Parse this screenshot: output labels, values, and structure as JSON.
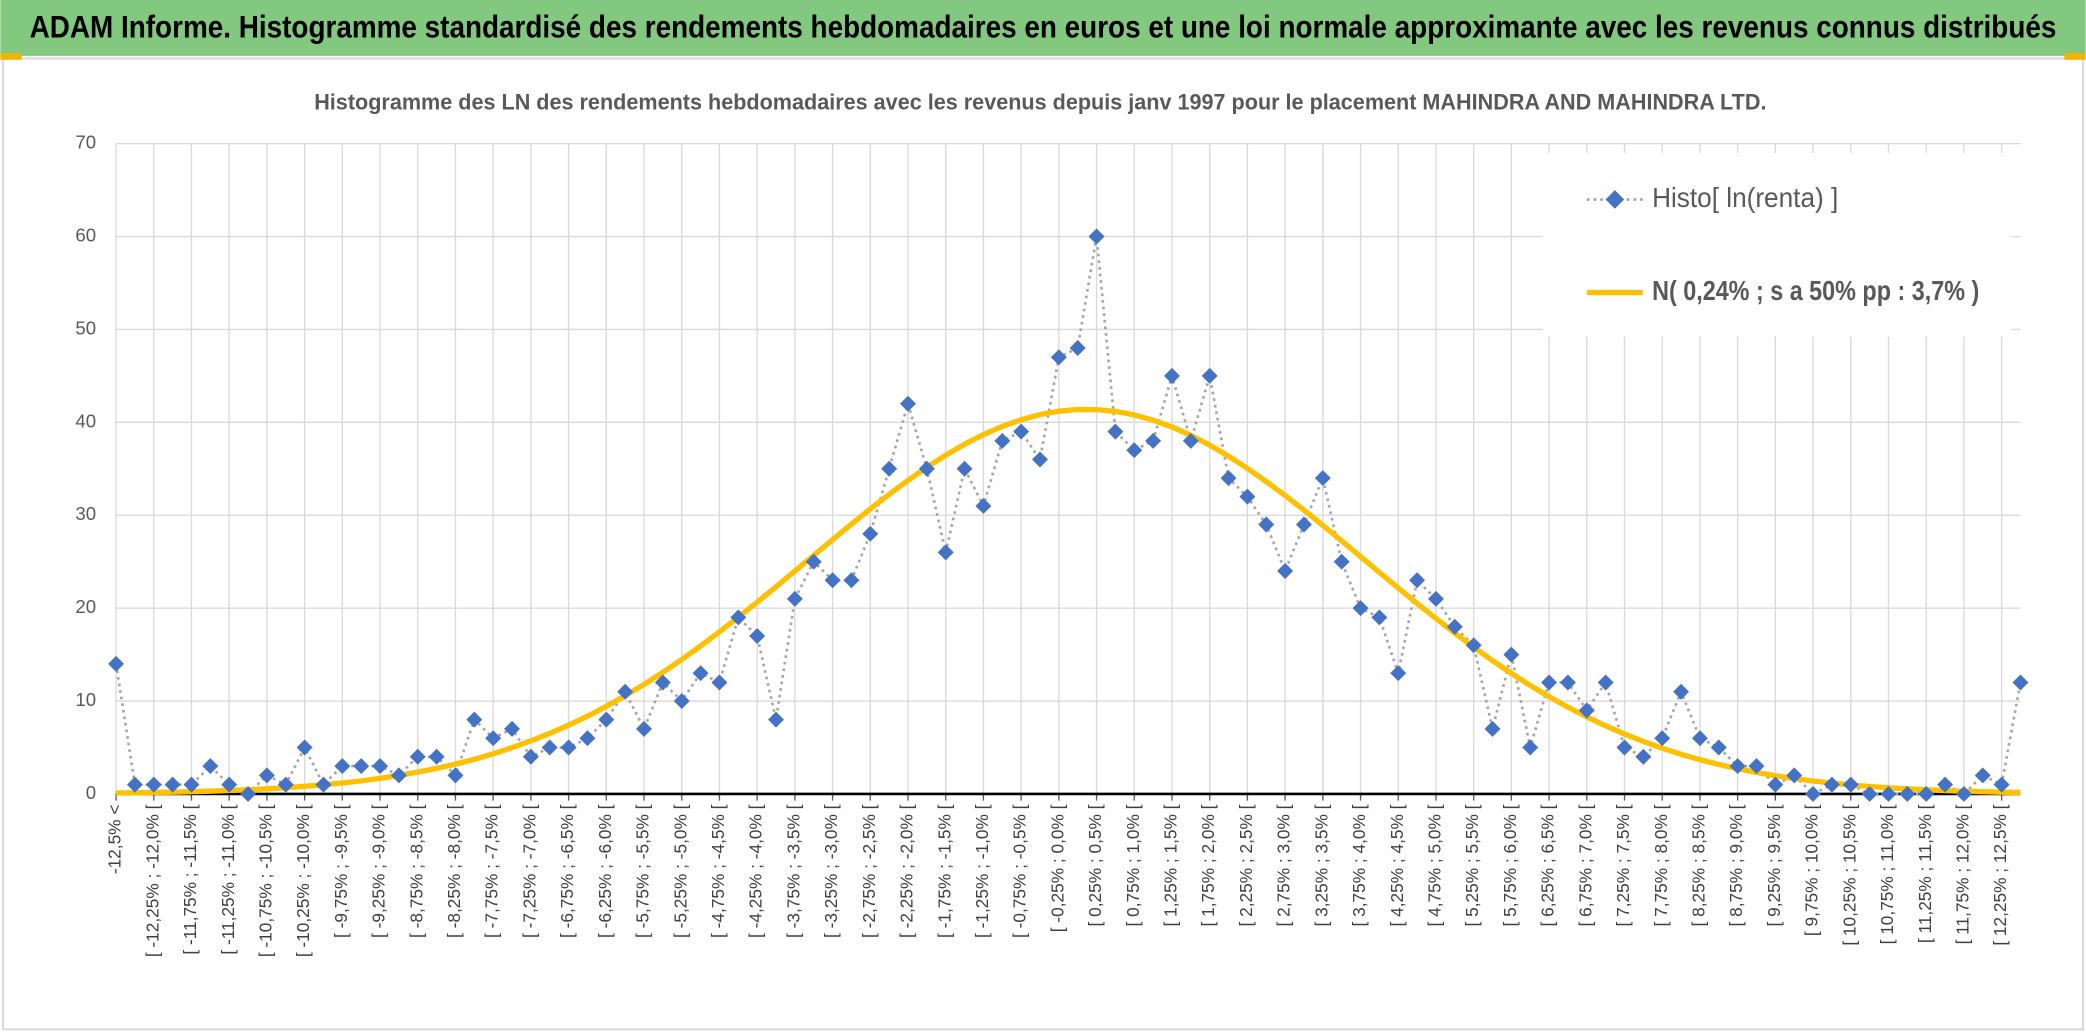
{
  "header": {
    "title": "ADAM Informe. Histogramme standardisé des rendements hebdomadaires en euros et une loi normale approximante avec les revenus connus distribués"
  },
  "chart_data": {
    "type": "line",
    "title": "Histogramme des LN des rendements hebdomadaires avec les revenus depuis janv 1997 pour le placement MAHINDRA  AND MAHINDRA LTD.",
    "categories": [
      "-12,5% <",
      null,
      "[ -12,25% ; -12,0% [",
      null,
      "[ -11,75% ; -11,5% [",
      null,
      "[ -11,25% ; -11,0% [",
      null,
      "[ -10,75% ; -10,5% [",
      null,
      "[ -10,25% ; -10,0% [",
      null,
      "[ -9,75% ; -9,5% [",
      null,
      "[ -9,25% ; -9,0% [",
      null,
      "[ -8,75% ; -8,5% [",
      null,
      "[ -8,25% ; -8,0% [",
      null,
      "[ -7,75% ; -7,5% [",
      null,
      "[ -7,25% ; -7,0% [",
      null,
      "[ -6,75% ; -6,5% [",
      null,
      "[ -6,25% ; -6,0% [",
      null,
      "[ -5,75% ; -5,5% [",
      null,
      "[ -5,25% ; -5,0% [",
      null,
      "[ -4,75% ; -4,5% [",
      null,
      "[ -4,25% ; -4,0% [",
      null,
      "[ -3,75% ; -3,5% [",
      null,
      "[ -3,25% ; -3,0% [",
      null,
      "[ -2,75% ; -2,5% [",
      null,
      "[ -2,25% ; -2,0% [",
      null,
      "[ -1,75% ; -1,5% [",
      null,
      "[ -1,25% ; -1,0% [",
      null,
      "[ -0,75% ; -0,5% [",
      null,
      "[ -0,25% ; 0,0% [",
      null,
      "[ 0,25% ; 0,5% [",
      null,
      "[ 0,75% ; 1,0% [",
      null,
      "[ 1,25% ; 1,5% [",
      null,
      "[ 1,75% ; 2,0% [",
      null,
      "[ 2,25% ; 2,5% [",
      null,
      "[ 2,75% ; 3,0% [",
      null,
      "[ 3,25% ; 3,5% [",
      null,
      "[ 3,75% ; 4,0% [",
      null,
      "[ 4,25% ; 4,5% [",
      null,
      "[ 4,75% ; 5,0% [",
      null,
      "[ 5,25% ; 5,5% [",
      null,
      "[ 5,75% ; 6,0% [",
      null,
      "[ 6,25% ; 6,5% [",
      null,
      "[ 6,75% ; 7,0% [",
      null,
      "[ 7,25% ; 7,5% [",
      null,
      "[ 7,75% ; 8,0% [",
      null,
      "[ 8,25% ; 8,5% [",
      null,
      "[ 8,75% ; 9,0% [",
      null,
      "[ 9,25% ; 9,5% [",
      null,
      "[ 9,75% ; 10,0% [",
      null,
      "[ 10,25% ; 10,5% [",
      null,
      "[ 10,75% ; 11,0% [",
      null,
      "[ 11,25% ; 11,5% [",
      null,
      "[ 11,75% ; 12,0% [",
      null,
      "[ 12,25% ; 12,5% [",
      null
    ],
    "series": [
      {
        "name": "Histo[ ln(renta) ]",
        "color": "#4472c4",
        "line_color": "#a6a6a6",
        "values": [
          14,
          1,
          1,
          1,
          1,
          3,
          1,
          0,
          2,
          1,
          5,
          1,
          3,
          3,
          3,
          2,
          4,
          4,
          2,
          8,
          6,
          7,
          4,
          5,
          5,
          6,
          8,
          11,
          7,
          12,
          10,
          13,
          12,
          19,
          17,
          8,
          21,
          25,
          23,
          23,
          28,
          35,
          42,
          35,
          26,
          35,
          31,
          38,
          39,
          36,
          47,
          48,
          60,
          39,
          37,
          38,
          45,
          38,
          45,
          34,
          32,
          29,
          24,
          29,
          34,
          25,
          20,
          19,
          13,
          23,
          21,
          18,
          16,
          7,
          15,
          5,
          12,
          12,
          9,
          12,
          5,
          4,
          6,
          11,
          6,
          5,
          3,
          3,
          1,
          2,
          0,
          1,
          1,
          0,
          0,
          0,
          0,
          1,
          0,
          2,
          1,
          12
        ]
      },
      {
        "name": "N( 0,24% ; s a 50% pp : 3,7% )",
        "color": "#ffc000",
        "values": [
          0.1,
          0.12,
          0.16,
          0.19,
          0.24,
          0.3,
          0.37,
          0.45,
          0.55,
          0.67,
          0.82,
          0.99,
          1.18,
          1.41,
          1.68,
          1.99,
          2.35,
          2.75,
          3.21,
          3.73,
          4.32,
          4.98,
          5.71,
          6.52,
          7.4,
          8.37,
          9.43,
          10.56,
          11.78,
          13.09,
          14.47,
          15.92,
          17.44,
          19.02,
          20.64,
          22.3,
          23.99,
          25.68,
          27.37,
          29.04,
          30.68,
          32.25,
          33.75,
          35.16,
          36.46,
          37.64,
          38.68,
          39.56,
          40.28,
          40.83,
          41.2,
          41.38,
          41.37,
          41.18,
          40.8,
          40.23,
          39.5,
          38.6,
          37.55,
          36.36,
          35.05,
          33.63,
          32.13,
          30.55,
          28.91,
          27.24,
          25.55,
          23.85,
          22.17,
          20.51,
          18.89,
          17.31,
          15.8,
          14.35,
          12.98,
          11.68,
          10.47,
          9.34,
          8.29,
          7.33,
          6.45,
          5.65,
          4.92,
          4.27,
          3.69,
          3.18,
          2.72,
          2.31,
          1.96,
          1.66,
          1.39,
          1.17,
          0.97,
          0.8,
          0.66,
          0.55,
          0.45,
          0.36,
          0.29,
          0.24,
          0.19,
          0.15
        ]
      }
    ],
    "ylim": [
      0,
      70
    ],
    "yticks": [
      0,
      10,
      20,
      30,
      40,
      50,
      60,
      70
    ],
    "grid": true,
    "legend": "top-right"
  }
}
